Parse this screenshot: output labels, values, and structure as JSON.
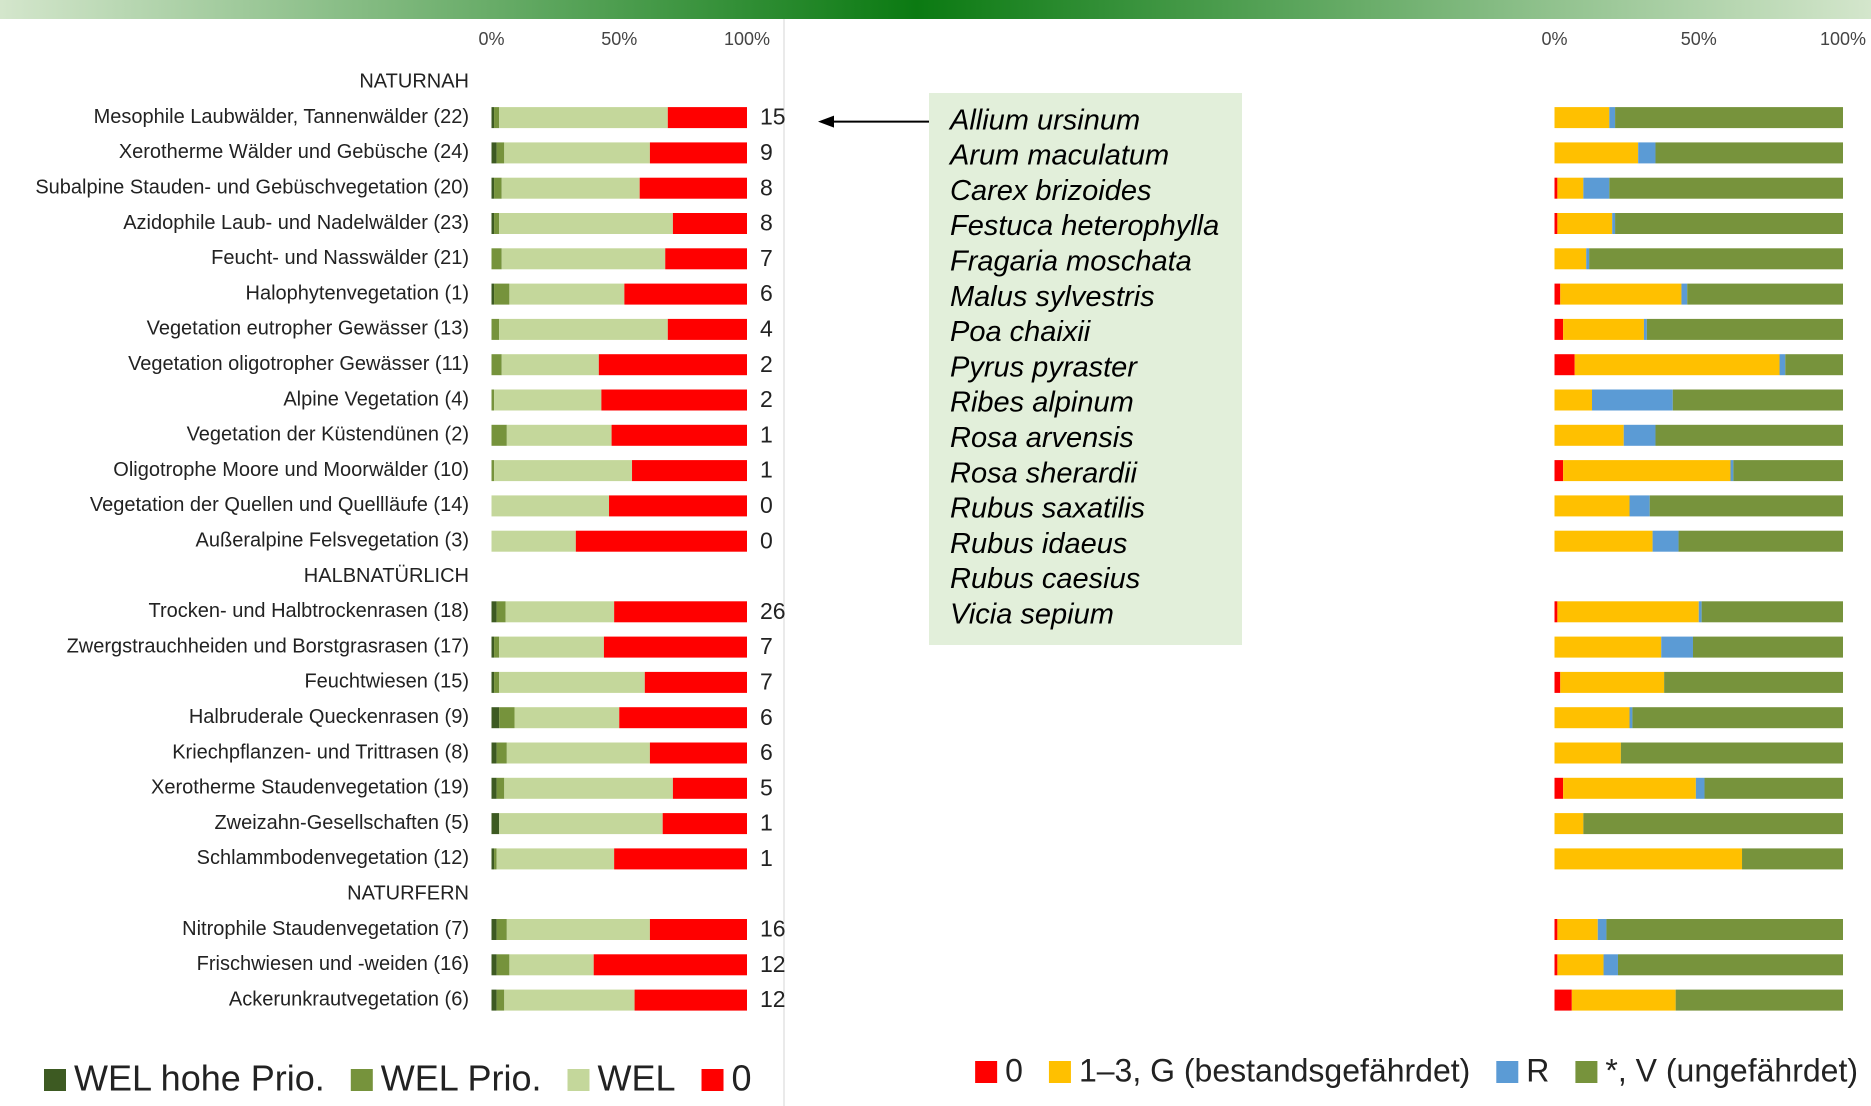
{
  "chart_data": [
    {
      "type": "bar",
      "orientation": "horizontal",
      "stacked": true,
      "categories": [
        "NATURNAH",
        "Mesophile Laubwälder, Tannenwälder (22)",
        "Xerotherme Wälder und Gebüsche (24)",
        "Subalpine Stauden- und Gebüschvegetation (20)",
        "Azidophile Laub- und Nadelwälder (23)",
        "Feucht- und Nasswälder (21)",
        "Halophytenvegetation (1)",
        "Vegetation eutropher Gewässer (13)",
        "Vegetation oligotropher Gewässer (11)",
        "Alpine Vegetation (4)",
        "Vegetation der Küstendünen (2)",
        "Oligotrophe Moore und Moorwälder (10)",
        "Vegetation der Quellen und Quellläufe (14)",
        "Außeralpine Felsvegetation (3)",
        "HALBNATÜRLICH",
        "Trocken- und Halbtrockenrasen (18)",
        "Zwergstrauchheiden und Borstgrasrasen (17)",
        "Feuchtwiesen (15)",
        "Halbruderale Queckenrasen (9)",
        "Kriechpflanzen- und Trittrasen (8)",
        "Xerotherme Staudenvegetation (19)",
        "Zweizahn-Gesellschaften (5)",
        "Schlammbodenvegetation (12)",
        "NATURFERN",
        "Nitrophile Staudenvegetation (7)",
        "Frischwiesen und -weiden (16)",
        "Ackerunkrautvegetation (6)"
      ],
      "series": [
        {
          "name": "WEL hohe Prio.",
          "color": "#3d5a22",
          "values": [
            null,
            1,
            2,
            1,
            1,
            0,
            1,
            0,
            0,
            0,
            0,
            0,
            0,
            0,
            null,
            2,
            1,
            1,
            3,
            2,
            2,
            3,
            1,
            null,
            2,
            2,
            2
          ]
        },
        {
          "name": "WEL Prio.",
          "color": "#76933c",
          "values": [
            null,
            2,
            3,
            3,
            2,
            4,
            6,
            3,
            4,
            1,
            6,
            1,
            0,
            0,
            null,
            3.5,
            2,
            2,
            6,
            4,
            3,
            0,
            1,
            null,
            4,
            5,
            3
          ]
        },
        {
          "name": "WEL",
          "color": "#c4d79b",
          "values": [
            null,
            66,
            57,
            54,
            68,
            64,
            45,
            66,
            38,
            42,
            41,
            54,
            46,
            33,
            null,
            42.5,
            41,
            57,
            41,
            56,
            66,
            64,
            46,
            null,
            56,
            33,
            51
          ]
        },
        {
          "name": "0",
          "color": "#ff0000",
          "values": [
            null,
            31,
            38,
            42,
            29,
            32,
            48,
            31,
            58,
            57,
            53,
            45,
            54,
            67,
            null,
            52,
            56,
            40,
            50,
            38,
            29,
            33,
            52,
            null,
            38,
            60,
            44
          ]
        }
      ],
      "counts": [
        null,
        15,
        9,
        8,
        8,
        7,
        6,
        4,
        2,
        2,
        1,
        1,
        0,
        0,
        null,
        26,
        7,
        7,
        6,
        6,
        5,
        1,
        1,
        null,
        16,
        12,
        12
      ],
      "xlim": [
        0,
        100
      ],
      "xticks": [
        {
          "value": 0,
          "label": "0%"
        },
        {
          "value": 50,
          "label": "50%"
        },
        {
          "value": 100,
          "label": "100%"
        }
      ],
      "annotation": {
        "items": [
          "Allium ursinum",
          "Arum maculatum",
          "Carex brizoides",
          "Festuca heterophylla",
          "Fragaria moschata",
          "Malus sylvestris",
          "Poa chaixii",
          "Pyrus pyraster",
          "Ribes alpinum",
          "Rosa arvensis",
          "Rosa sherardii",
          "Rubus saxatilis",
          "Rubus idaeus",
          "Rubus caesius",
          "Vicia sepium"
        ]
      }
    },
    {
      "type": "bar",
      "orientation": "horizontal",
      "stacked": true,
      "series": [
        {
          "name": "0",
          "color": "#ff0000",
          "values": [
            null,
            0,
            0,
            1,
            1,
            0,
            2,
            3,
            7,
            0,
            0,
            3,
            0,
            0,
            null,
            1,
            0,
            2,
            0,
            0,
            3,
            0,
            0,
            null,
            1,
            1,
            6
          ]
        },
        {
          "name": "1–3, G (bestandsgefährdet)",
          "color": "#ffc000",
          "values": [
            null,
            19,
            29,
            9,
            19,
            11,
            42,
            28,
            71,
            13,
            24,
            58,
            26,
            34,
            null,
            49,
            37,
            36,
            26,
            23,
            46,
            10,
            65,
            null,
            14,
            16,
            36
          ]
        },
        {
          "name": "R",
          "color": "#5b9bd5",
          "values": [
            null,
            2,
            6,
            9,
            1,
            1,
            2,
            1,
            2,
            28,
            11,
            1,
            7,
            9,
            null,
            1,
            11,
            0,
            1,
            0,
            3,
            0,
            0,
            null,
            3,
            5,
            0
          ]
        },
        {
          "name": "*, V (ungefährdet)",
          "color": "#77933c",
          "values": [
            null,
            79,
            65,
            81,
            79,
            88,
            54,
            68,
            20,
            59,
            65,
            38,
            67,
            57,
            null,
            49,
            52,
            62,
            73,
            77,
            48,
            90,
            35,
            null,
            82,
            78,
            58
          ]
        }
      ],
      "xlim": [
        0,
        100
      ],
      "xticks": [
        {
          "value": 0,
          "label": "0%"
        },
        {
          "value": 50,
          "label": "50%"
        },
        {
          "value": 100,
          "label": "100%"
        }
      ]
    }
  ]
}
